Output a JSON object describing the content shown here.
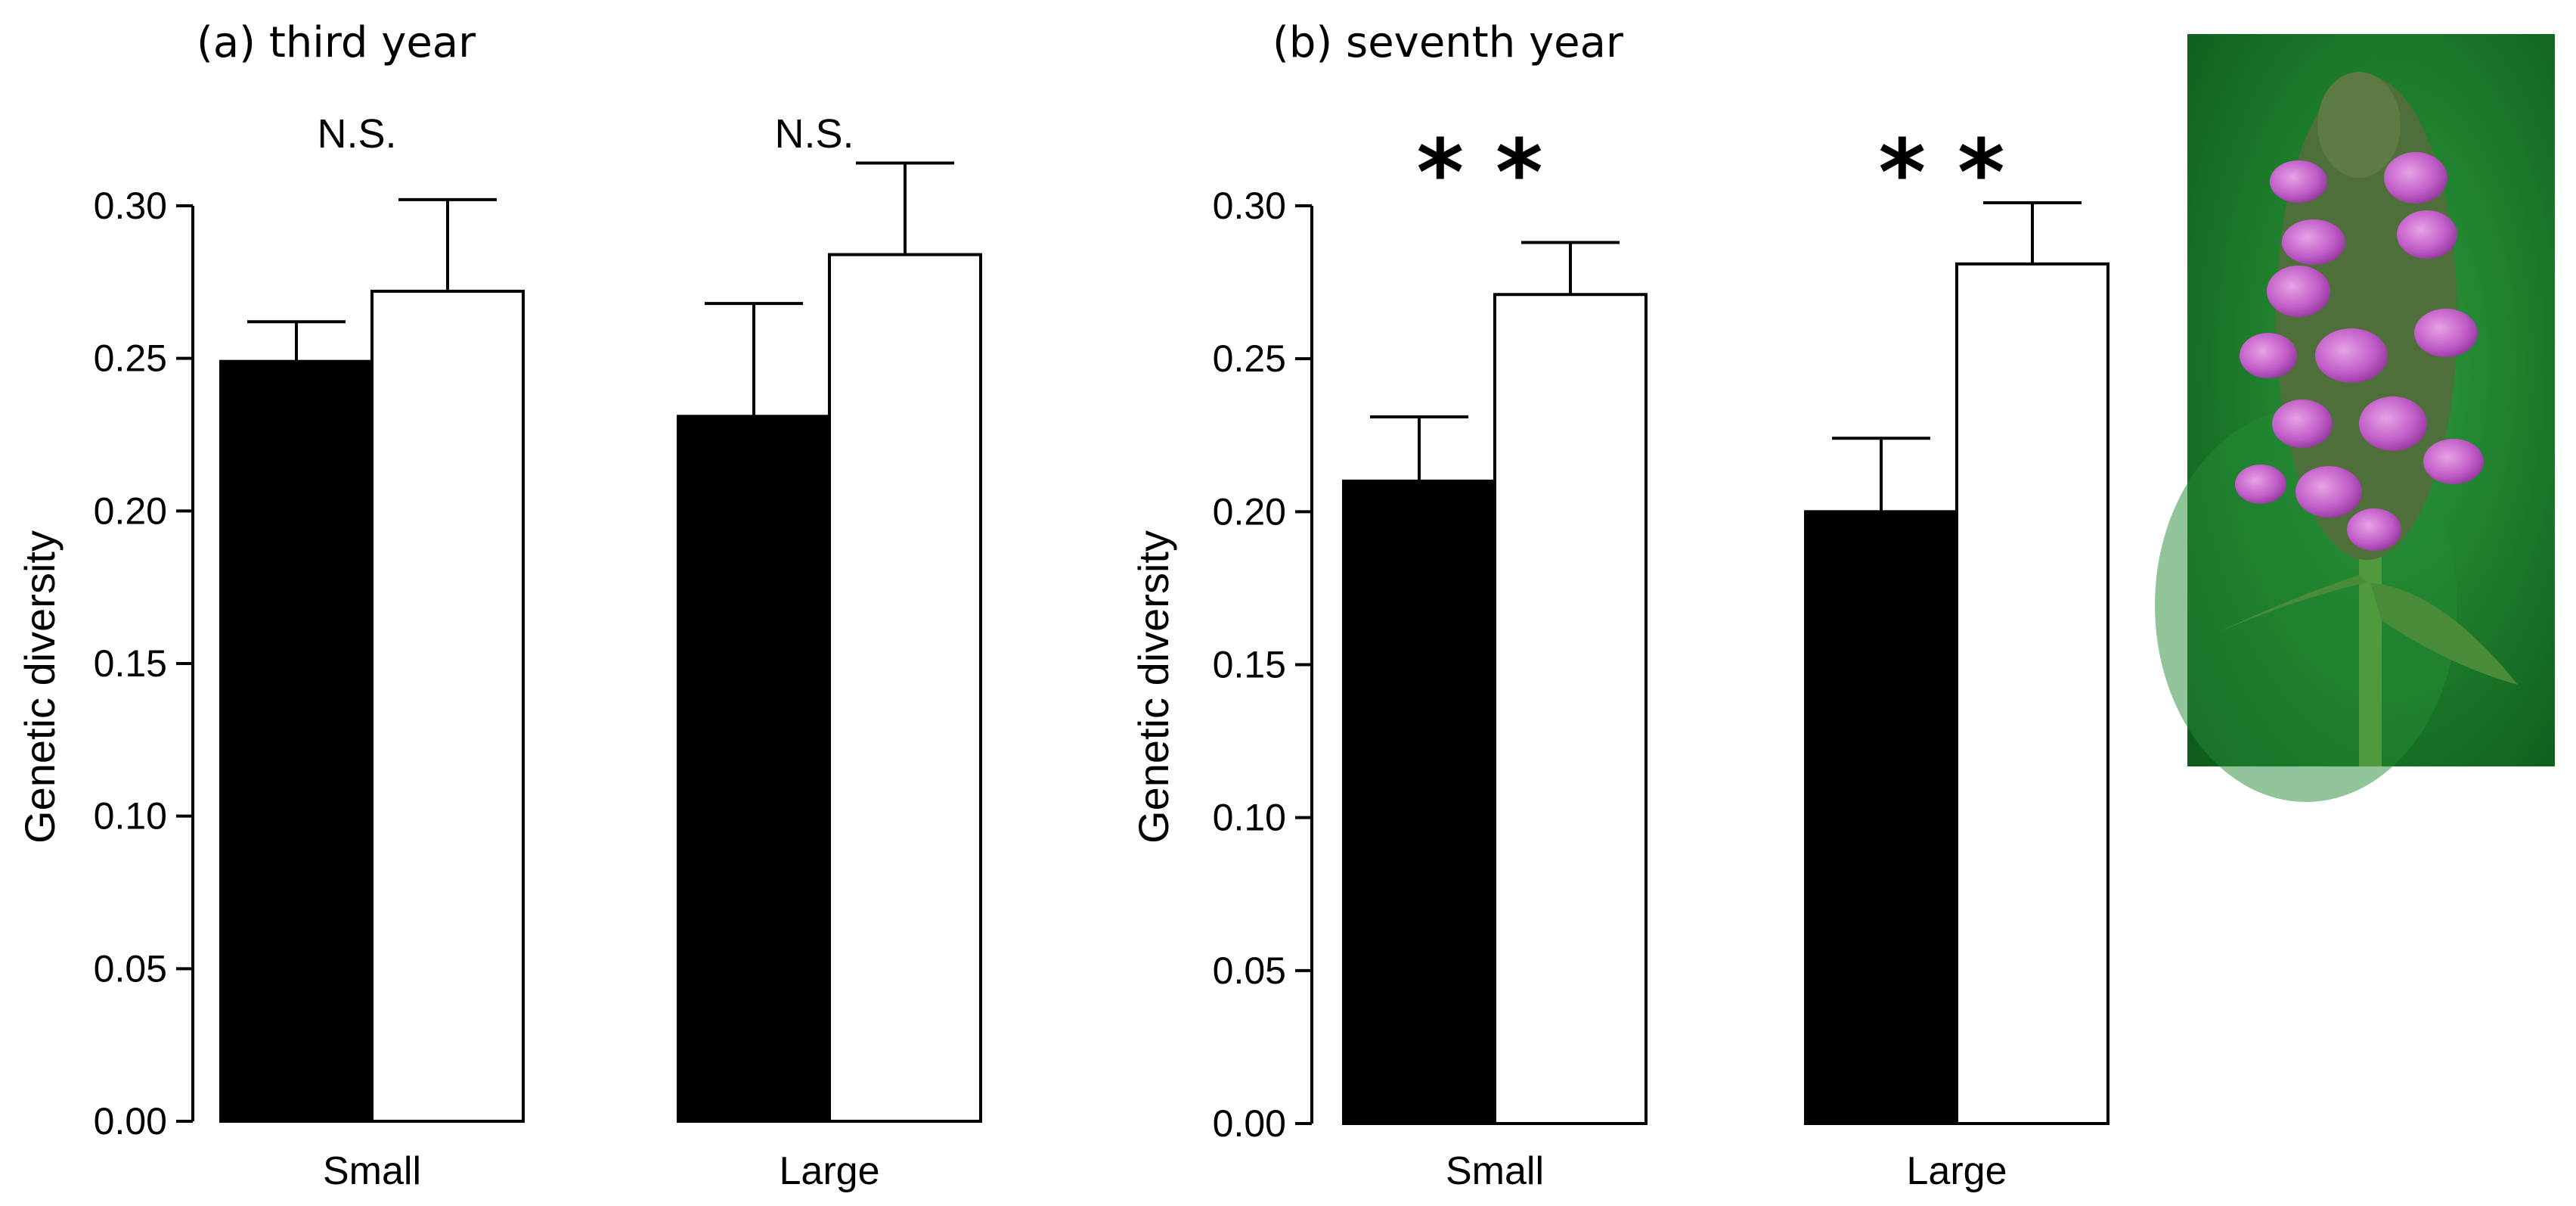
{
  "chart_data": [
    {
      "type": "bar",
      "title": "(a) third year",
      "ylabel": "Genetic diversity",
      "xlabel": "",
      "ylim": [
        0,
        0.3
      ],
      "yticks": [
        "0.00",
        "0.05",
        "0.10",
        "0.15",
        "0.20",
        "0.25",
        "0.30"
      ],
      "categories": [
        "Small",
        "Large"
      ],
      "series": [
        {
          "name": "black",
          "color": "#000000",
          "values": [
            0.249,
            0.231
          ],
          "errors": [
            0.013,
            0.037
          ]
        },
        {
          "name": "white",
          "color": "#ffffff",
          "values": [
            0.272,
            0.284
          ],
          "errors": [
            0.03,
            0.03
          ]
        }
      ],
      "annotations": [
        "N.S.",
        "N.S."
      ]
    },
    {
      "type": "bar",
      "title": "(b) seventh year",
      "ylabel": "Genetic diversity",
      "xlabel": "",
      "ylim": [
        0,
        0.3
      ],
      "yticks": [
        "0.00",
        "0.05",
        "0.10",
        "0.15",
        "0.20",
        "0.25",
        "0.30"
      ],
      "categories": [
        "Small",
        "Large"
      ],
      "series": [
        {
          "name": "black",
          "color": "#000000",
          "values": [
            0.21,
            0.2
          ],
          "errors": [
            0.021,
            0.024
          ]
        },
        {
          "name": "white",
          "color": "#ffffff",
          "values": [
            0.271,
            0.281
          ],
          "errors": [
            0.017,
            0.02
          ]
        }
      ],
      "annotations": [
        "* *",
        "* *"
      ]
    }
  ],
  "photo": {
    "icon": "flower-photo"
  }
}
